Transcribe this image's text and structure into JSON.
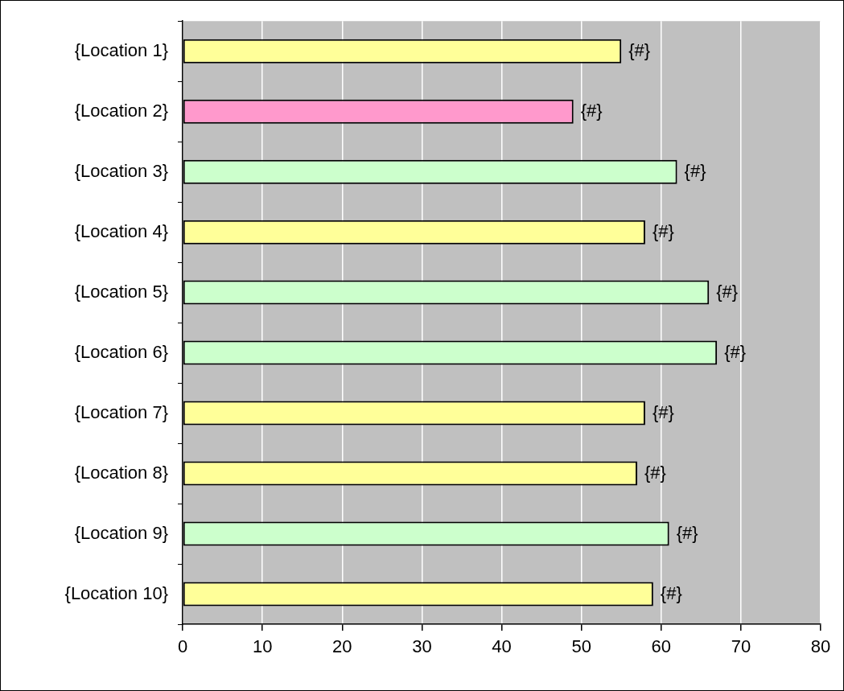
{
  "chart_data": {
    "type": "bar",
    "orientation": "horizontal",
    "categories": [
      "{Location 1}",
      "{Location 2}",
      "{Location 3}",
      "{Location 4}",
      "{Location 5}",
      "{Location 6}",
      "{Location 7}",
      "{Location 8}",
      "{Location 9}",
      "{Location 10}"
    ],
    "values": [
      55,
      49,
      62,
      58,
      66,
      67,
      58,
      57,
      61,
      59
    ],
    "colors": [
      "#ffff99",
      "#ff99cc",
      "#ccffcc",
      "#ffff99",
      "#ccffcc",
      "#ccffcc",
      "#ffff99",
      "#ffff99",
      "#ccffcc",
      "#ffff99"
    ],
    "value_labels": [
      "{#}",
      "{#}",
      "{#}",
      "{#}",
      "{#}",
      "{#}",
      "{#}",
      "{#}",
      "{#}",
      "{#}"
    ],
    "xlim": [
      0,
      80
    ],
    "xticks": [
      0,
      10,
      20,
      30,
      40,
      50,
      60,
      70,
      80
    ],
    "grid": "x",
    "legend": false
  }
}
